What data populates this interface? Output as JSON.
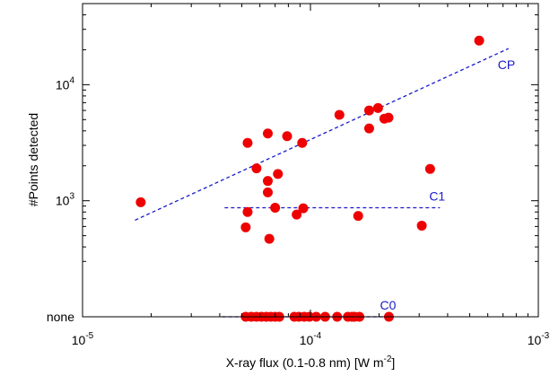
{
  "chart_data": {
    "type": "scatter",
    "title": "",
    "xlabel": "X-ray flux (0.1-0.8 nm) [W m",
    "xlabel_sup": "-2",
    "xlabel_end": "]",
    "ylabel": "#Points detected",
    "x_scale": "log",
    "y_scale": "log",
    "xlim": [
      1e-05,
      0.001
    ],
    "ylim": [
      100,
      50000
    ],
    "x_ticks": [
      {
        "value": 1e-05,
        "base": "10",
        "exp": "-5"
      },
      {
        "value": 0.0001,
        "base": "10",
        "exp": "-4"
      },
      {
        "value": 0.001,
        "base": "10",
        "exp": "-3"
      }
    ],
    "y_ticks": [
      {
        "value": 1000,
        "base": "10",
        "exp": "3"
      },
      {
        "value": 10000,
        "base": "10",
        "exp": "4"
      }
    ],
    "none_tick_label": "none",
    "none_value": 100,
    "grid": false,
    "legend": "none",
    "marker_color": "#ee0000",
    "fit_color": "#1a1acc",
    "points": [
      [
        1.8e-05,
        970
      ],
      [
        5.3e-05,
        3150
      ],
      [
        6.5e-05,
        3800
      ],
      [
        7.9e-05,
        3600
      ],
      [
        9.2e-05,
        3150
      ],
      [
        5.8e-05,
        1900
      ],
      [
        6.5e-05,
        1480
      ],
      [
        6.5e-05,
        1180
      ],
      [
        7.2e-05,
        1700
      ],
      [
        5.3e-05,
        800
      ],
      [
        5.2e-05,
        590
      ],
      [
        6.6e-05,
        470
      ],
      [
        7e-05,
        870
      ],
      [
        8.7e-05,
        760
      ],
      [
        9.3e-05,
        860
      ],
      [
        0.000134,
        5500
      ],
      [
        0.000181,
        6000
      ],
      [
        0.000198,
        6300
      ],
      [
        0.000211,
        5100
      ],
      [
        0.00022,
        5200
      ],
      [
        0.000181,
        4200
      ],
      [
        0.000162,
        740
      ],
      [
        0.000308,
        610
      ],
      [
        0.000335,
        1880
      ],
      [
        0.00055,
        24000
      ]
    ],
    "none_points_x": [
      5.2e-05,
      5.5e-05,
      5.8e-05,
      6.1e-05,
      6.4e-05,
      6.7e-05,
      7e-05,
      7.3e-05,
      8.5e-05,
      8.9e-05,
      9.4e-05,
      9.9e-05,
      0.000106,
      0.000116,
      0.000131,
      0.000146,
      0.000152,
      0.000156,
      0.000164,
      0.000221
    ],
    "fits": [
      {
        "label": "CP",
        "x": [
          1.7e-05,
          0.00074
        ],
        "y": [
          680,
          20500
        ]
      },
      {
        "label": "C1",
        "x": [
          4.2e-05,
          0.00037
        ],
        "y": [
          870,
          870
        ]
      },
      {
        "label": "C0",
        "x": [
          4.1e-05,
          0.000225
        ],
        "y": [
          100,
          100
        ]
      }
    ]
  }
}
